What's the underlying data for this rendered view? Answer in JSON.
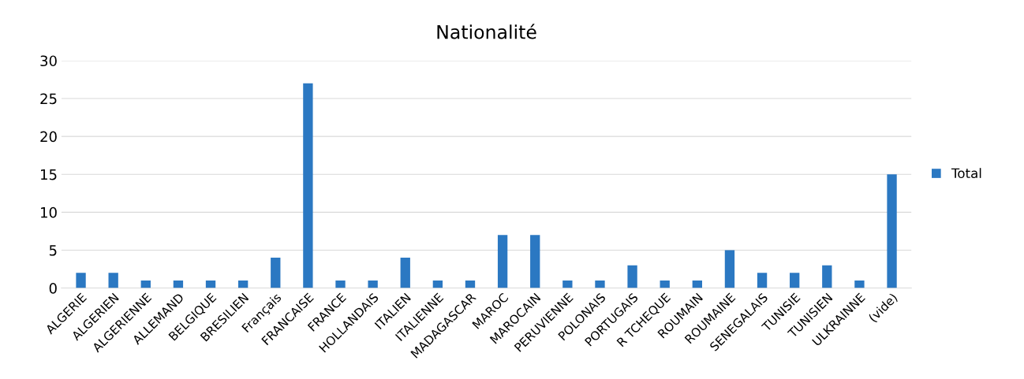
{
  "chart_data": {
    "type": "bar",
    "title": "Nationalité",
    "categories": [
      "ALGERIE",
      "ALGERIEN",
      "ALGERIENNE",
      "ALLEMAND",
      "BELGIQUE",
      "BRESILIEN",
      "Français",
      "FRANCAISE",
      "FRANCE",
      "HOLLANDAIS",
      "ITALIEN",
      "ITALIENNE",
      "MADAGASCAR",
      "MAROC",
      "MAROCAIN",
      "PERUVIENNE",
      "POLONAIS",
      "PORTUGAIS",
      "R TCHEQUE",
      "ROUMAIN",
      "ROUMAINE",
      "SENEGALAIS",
      "TUNISIE",
      "TUNISIEN",
      "ULKRAINNE",
      "(vide)"
    ],
    "series": [
      {
        "name": "Total",
        "color": "#2b78c2",
        "values": [
          2,
          2,
          1,
          1,
          1,
          1,
          4,
          27,
          1,
          1,
          4,
          1,
          1,
          7,
          7,
          1,
          1,
          3,
          1,
          1,
          5,
          2,
          2,
          3,
          1,
          15
        ]
      }
    ],
    "ylim": [
      0,
      30
    ],
    "yticks": [
      0,
      5,
      10,
      15,
      20,
      25,
      30
    ],
    "grid": "y",
    "legend": "right"
  }
}
